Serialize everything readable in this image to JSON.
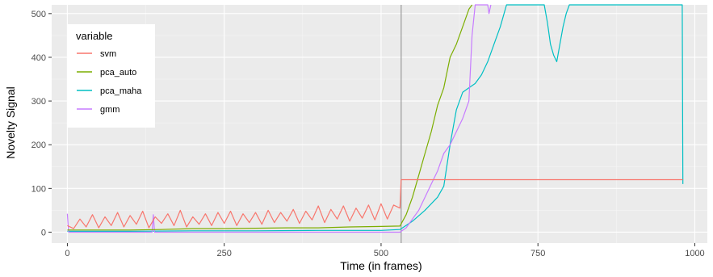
{
  "chart_data": {
    "type": "line",
    "xlabel": "Time (in frames)",
    "ylabel": "Novelty Signal",
    "xlim": [
      -25,
      1020
    ],
    "ylim": [
      -25,
      520
    ],
    "x_ticks": [
      0,
      250,
      500,
      750,
      1000
    ],
    "y_ticks": [
      0,
      100,
      200,
      300,
      400,
      500
    ],
    "x_tick_labels": [
      "0",
      "250",
      "500",
      "750",
      "1000"
    ],
    "y_tick_labels": [
      "0",
      "100",
      "200",
      "300",
      "400",
      "500"
    ],
    "grid": true,
    "background": "#ebebeb",
    "vline_x": 532,
    "legend": {
      "title": "variable",
      "position": "top-left"
    },
    "series": [
      {
        "name": "svm",
        "color": "#f8766d",
        "points": [
          [
            0,
            15
          ],
          [
            10,
            8
          ],
          [
            20,
            30
          ],
          [
            30,
            12
          ],
          [
            40,
            40
          ],
          [
            50,
            10
          ],
          [
            60,
            35
          ],
          [
            70,
            15
          ],
          [
            80,
            45
          ],
          [
            90,
            12
          ],
          [
            100,
            38
          ],
          [
            110,
            18
          ],
          [
            120,
            48
          ],
          [
            130,
            10
          ],
          [
            140,
            35
          ],
          [
            150,
            20
          ],
          [
            160,
            42
          ],
          [
            170,
            15
          ],
          [
            180,
            50
          ],
          [
            190,
            12
          ],
          [
            200,
            35
          ],
          [
            210,
            18
          ],
          [
            220,
            42
          ],
          [
            230,
            15
          ],
          [
            240,
            45
          ],
          [
            250,
            20
          ],
          [
            260,
            48
          ],
          [
            270,
            15
          ],
          [
            280,
            42
          ],
          [
            290,
            22
          ],
          [
            300,
            45
          ],
          [
            310,
            18
          ],
          [
            320,
            50
          ],
          [
            330,
            22
          ],
          [
            340,
            45
          ],
          [
            350,
            25
          ],
          [
            360,
            52
          ],
          [
            370,
            20
          ],
          [
            380,
            48
          ],
          [
            390,
            28
          ],
          [
            400,
            60
          ],
          [
            410,
            22
          ],
          [
            420,
            52
          ],
          [
            430,
            30
          ],
          [
            440,
            60
          ],
          [
            450,
            25
          ],
          [
            460,
            55
          ],
          [
            470,
            32
          ],
          [
            480,
            62
          ],
          [
            490,
            28
          ],
          [
            500,
            65
          ],
          [
            510,
            30
          ],
          [
            520,
            62
          ],
          [
            530,
            55
          ],
          [
            532,
            120
          ],
          [
            980,
            120
          ],
          [
            981,
            120
          ]
        ]
      },
      {
        "name": "pca_auto",
        "color": "#7cae00",
        "points": [
          [
            0,
            5
          ],
          [
            50,
            5
          ],
          [
            100,
            5
          ],
          [
            150,
            6
          ],
          [
            200,
            8
          ],
          [
            250,
            8
          ],
          [
            300,
            9
          ],
          [
            350,
            10
          ],
          [
            400,
            10
          ],
          [
            450,
            12
          ],
          [
            500,
            13
          ],
          [
            530,
            14
          ],
          [
            540,
            40
          ],
          [
            550,
            80
          ],
          [
            560,
            130
          ],
          [
            570,
            180
          ],
          [
            580,
            230
          ],
          [
            590,
            290
          ],
          [
            600,
            330
          ],
          [
            610,
            400
          ],
          [
            620,
            430
          ],
          [
            630,
            470
          ],
          [
            640,
            510
          ],
          [
            645,
            520
          ]
        ]
      },
      {
        "name": "pca_maha",
        "color": "#00bfc4",
        "points": [
          [
            0,
            2
          ],
          [
            100,
            2
          ],
          [
            200,
            3
          ],
          [
            300,
            3
          ],
          [
            400,
            4
          ],
          [
            500,
            4
          ],
          [
            530,
            6
          ],
          [
            550,
            25
          ],
          [
            570,
            50
          ],
          [
            590,
            80
          ],
          [
            600,
            105
          ],
          [
            610,
            200
          ],
          [
            620,
            280
          ],
          [
            630,
            320
          ],
          [
            640,
            330
          ],
          [
            650,
            340
          ],
          [
            660,
            360
          ],
          [
            670,
            390
          ],
          [
            680,
            430
          ],
          [
            690,
            470
          ],
          [
            700,
            520
          ],
          [
            760,
            520
          ],
          [
            765,
            480
          ],
          [
            770,
            430
          ],
          [
            775,
            405
          ],
          [
            780,
            390
          ],
          [
            785,
            430
          ],
          [
            790,
            470
          ],
          [
            795,
            500
          ],
          [
            800,
            520
          ],
          [
            980,
            520
          ],
          [
            981,
            110
          ]
        ]
      },
      {
        "name": "gmm",
        "color": "#c77cff",
        "points": [
          [
            0,
            42
          ],
          [
            2,
            0
          ],
          [
            50,
            0
          ],
          [
            100,
            0
          ],
          [
            135,
            0
          ],
          [
            137,
            40
          ],
          [
            139,
            0
          ],
          [
            200,
            0
          ],
          [
            300,
            0
          ],
          [
            400,
            0
          ],
          [
            500,
            0
          ],
          [
            530,
            0
          ],
          [
            540,
            10
          ],
          [
            550,
            30
          ],
          [
            560,
            50
          ],
          [
            570,
            80
          ],
          [
            580,
            110
          ],
          [
            590,
            140
          ],
          [
            600,
            180
          ],
          [
            610,
            200
          ],
          [
            620,
            230
          ],
          [
            630,
            260
          ],
          [
            640,
            300
          ],
          [
            645,
            450
          ],
          [
            650,
            520
          ],
          [
            670,
            520
          ],
          [
            672,
            500
          ],
          [
            675,
            520
          ]
        ]
      }
    ]
  }
}
